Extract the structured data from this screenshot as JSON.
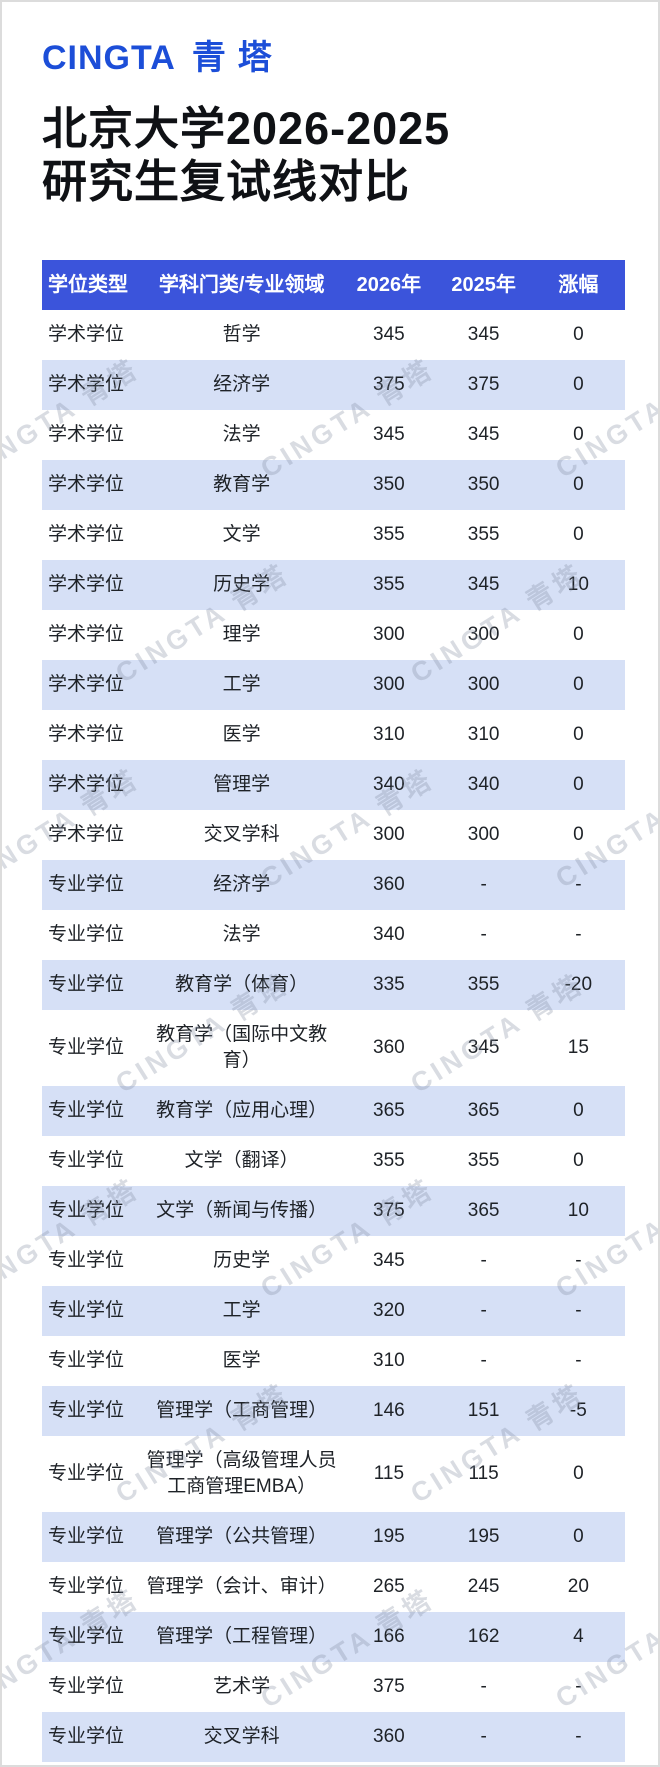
{
  "brand": {
    "logo_latin": "CINGTA",
    "logo_cjk": "青塔",
    "logo_color": "#1c4ed8"
  },
  "title_lines": [
    "北京大学2026-2025",
    "研究生复试线对比"
  ],
  "watermark_text": "CINGTA 青塔",
  "colors": {
    "header_bg": "#3b54db",
    "alt_row_bg": "#d6e0f6",
    "header_text": "#ffffff",
    "body_text": "#1e2227"
  },
  "chart_data": {
    "type": "table",
    "title": "北京大学2026-2025研究生复试线对比",
    "columns": [
      "学位类型",
      "学科门类/专业领域",
      "2026年",
      "2025年",
      "涨幅"
    ],
    "rows": [
      [
        "学术学位",
        "哲学",
        "345",
        "345",
        "0"
      ],
      [
        "学术学位",
        "经济学",
        "375",
        "375",
        "0"
      ],
      [
        "学术学位",
        "法学",
        "345",
        "345",
        "0"
      ],
      [
        "学术学位",
        "教育学",
        "350",
        "350",
        "0"
      ],
      [
        "学术学位",
        "文学",
        "355",
        "355",
        "0"
      ],
      [
        "学术学位",
        "历史学",
        "355",
        "345",
        "10"
      ],
      [
        "学术学位",
        "理学",
        "300",
        "300",
        "0"
      ],
      [
        "学术学位",
        "工学",
        "300",
        "300",
        "0"
      ],
      [
        "学术学位",
        "医学",
        "310",
        "310",
        "0"
      ],
      [
        "学术学位",
        "管理学",
        "340",
        "340",
        "0"
      ],
      [
        "学术学位",
        "交叉学科",
        "300",
        "300",
        "0"
      ],
      [
        "专业学位",
        "经济学",
        "360",
        "-",
        "-"
      ],
      [
        "专业学位",
        "法学",
        "340",
        "-",
        "-"
      ],
      [
        "专业学位",
        "教育学（体育）",
        "335",
        "355",
        "-20"
      ],
      [
        "专业学位",
        "教育学（国际中文教育）",
        "360",
        "345",
        "15"
      ],
      [
        "专业学位",
        "教育学（应用心理）",
        "365",
        "365",
        "0"
      ],
      [
        "专业学位",
        "文学（翻译）",
        "355",
        "355",
        "0"
      ],
      [
        "专业学位",
        "文学（新闻与传播）",
        "375",
        "365",
        "10"
      ],
      [
        "专业学位",
        "历史学",
        "345",
        "-",
        "-"
      ],
      [
        "专业学位",
        "工学",
        "320",
        "-",
        "-"
      ],
      [
        "专业学位",
        "医学",
        "310",
        "-",
        "-"
      ],
      [
        "专业学位",
        "管理学（工商管理）",
        "146",
        "151",
        "-5"
      ],
      [
        "专业学位",
        "管理学（高级管理人员工商管理EMBA）",
        "115",
        "115",
        "0"
      ],
      [
        "专业学位",
        "管理学（公共管理）",
        "195",
        "195",
        "0"
      ],
      [
        "专业学位",
        "管理学（会计、审计）",
        "265",
        "245",
        "20"
      ],
      [
        "专业学位",
        "管理学（工程管理）",
        "166",
        "162",
        "4"
      ],
      [
        "专业学位",
        "艺术学",
        "375",
        "-",
        "-"
      ],
      [
        "专业学位",
        "交叉学科",
        "360",
        "-",
        "-"
      ]
    ]
  }
}
